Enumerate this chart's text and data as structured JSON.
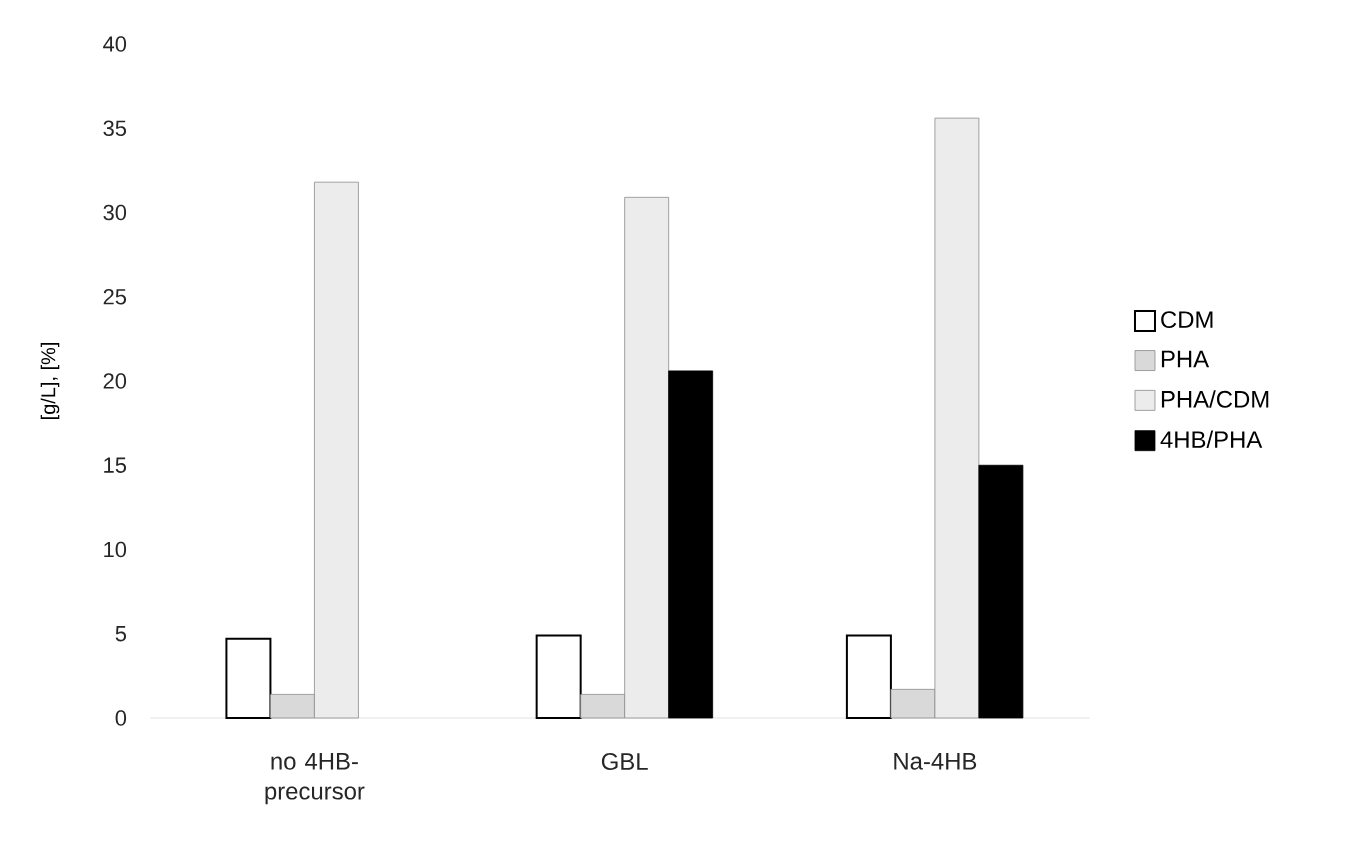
{
  "chart_data": {
    "type": "bar",
    "ylabel": "[g/L], [%]",
    "categories": [
      "no 4HB-precursor",
      "GBL",
      "Na-4HB"
    ],
    "series": [
      {
        "name": "CDM",
        "color": "#ffffff",
        "values": [
          4.7,
          4.9,
          4.9
        ]
      },
      {
        "name": "PHA",
        "color": "#d9d9d9",
        "values": [
          1.4,
          1.4,
          1.7
        ]
      },
      {
        "name": "PHA/CDM",
        "color": "#ececec",
        "values": [
          31.8,
          30.9,
          35.6
        ]
      },
      {
        "name": "4HB/PHA",
        "color": "#000000",
        "values": [
          null,
          20.6,
          15.0
        ]
      }
    ],
    "ylim": [
      0,
      40
    ],
    "yticks": [
      0,
      5,
      10,
      15,
      20,
      25,
      30,
      35,
      40
    ],
    "grid": false,
    "legend": "right"
  }
}
